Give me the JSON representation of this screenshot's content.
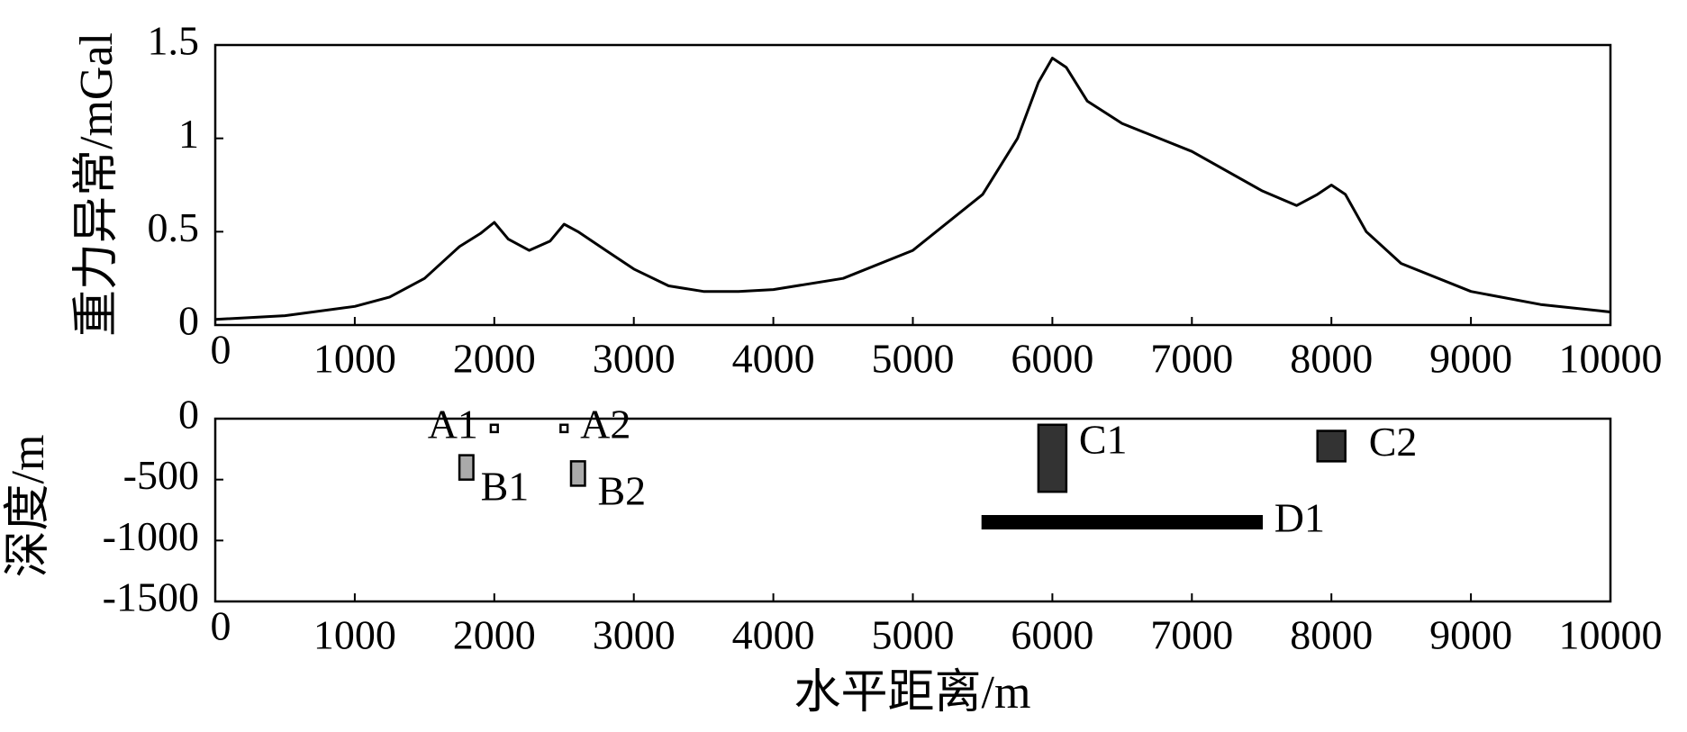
{
  "chart_data": [
    {
      "type": "line",
      "ylabel": "重力异常/mGal",
      "xlim": [
        0,
        10000
      ],
      "xticks": [
        0,
        1000,
        2000,
        3000,
        4000,
        5000,
        6000,
        7000,
        8000,
        9000,
        10000
      ],
      "ylim": [
        0,
        1.5
      ],
      "yticks": [
        0,
        0.5,
        1,
        1.5
      ],
      "series": [
        {
          "color": "#000000",
          "x": [
            0,
            500,
            1000,
            1250,
            1500,
            1750,
            1900,
            2000,
            2100,
            2250,
            2400,
            2500,
            2600,
            2800,
            3000,
            3250,
            3500,
            3750,
            4000,
            4500,
            5000,
            5500,
            5750,
            5900,
            6000,
            6100,
            6250,
            6500,
            7000,
            7500,
            7750,
            7900,
            8000,
            8100,
            8250,
            8500,
            9000,
            9500,
            10000
          ],
          "values": [
            0.03,
            0.05,
            0.1,
            0.15,
            0.25,
            0.42,
            0.49,
            0.55,
            0.46,
            0.4,
            0.45,
            0.54,
            0.5,
            0.4,
            0.3,
            0.21,
            0.18,
            0.18,
            0.19,
            0.25,
            0.4,
            0.7,
            1.0,
            1.3,
            1.43,
            1.38,
            1.2,
            1.08,
            0.93,
            0.72,
            0.64,
            0.7,
            0.75,
            0.7,
            0.5,
            0.33,
            0.18,
            0.11,
            0.07
          ]
        }
      ]
    },
    {
      "type": "bodies",
      "xlabel": "水平距离/m",
      "ylabel": "深度/m",
      "xlim": [
        0,
        10000
      ],
      "xticks": [
        0,
        1000,
        2000,
        3000,
        4000,
        5000,
        6000,
        7000,
        8000,
        9000,
        10000
      ],
      "ylim": [
        -1500,
        0
      ],
      "yticks": [
        0,
        -500,
        -1000,
        -1500
      ],
      "bodies": [
        {
          "name": "A1",
          "color": "#ffffff",
          "x": [
            1975,
            2025
          ],
          "depth": [
            -50,
            -110
          ]
        },
        {
          "name": "A2",
          "color": "#ffffff",
          "x": [
            2475,
            2525
          ],
          "depth": [
            -50,
            -110
          ]
        },
        {
          "name": "B1",
          "color": "#aaaaaa",
          "x": [
            1750,
            1850
          ],
          "depth": [
            -300,
            -500
          ]
        },
        {
          "name": "B2",
          "color": "#aaaaaa",
          "x": [
            2550,
            2650
          ],
          "depth": [
            -350,
            -550
          ]
        },
        {
          "name": "C1",
          "color": "#333333",
          "x": [
            5900,
            6100
          ],
          "depth": [
            -50,
            -600
          ]
        },
        {
          "name": "C2",
          "color": "#333333",
          "x": [
            7900,
            8100
          ],
          "depth": [
            -100,
            -350
          ]
        },
        {
          "name": "D1",
          "color": "#000000",
          "x": [
            5500,
            7500
          ],
          "depth": [
            -800,
            -900
          ]
        }
      ]
    }
  ]
}
